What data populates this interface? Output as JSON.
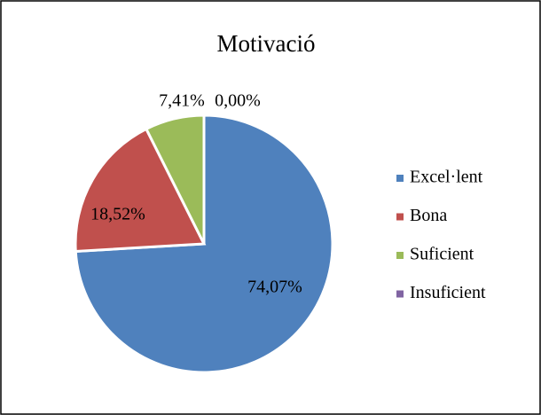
{
  "chart_data": {
    "type": "pie",
    "title": "Motivació",
    "categories": [
      "Excel·lent",
      "Bona",
      "Suficient",
      "Insuficient"
    ],
    "values": [
      74.07,
      18.52,
      7.41,
      0.0
    ],
    "value_labels": [
      "74,07%",
      "18,52%",
      "7,41%",
      "0,00%"
    ],
    "colors": [
      "#4f81bd",
      "#c0504d",
      "#9bbb59",
      "#8064a2"
    ],
    "legend": "right"
  }
}
